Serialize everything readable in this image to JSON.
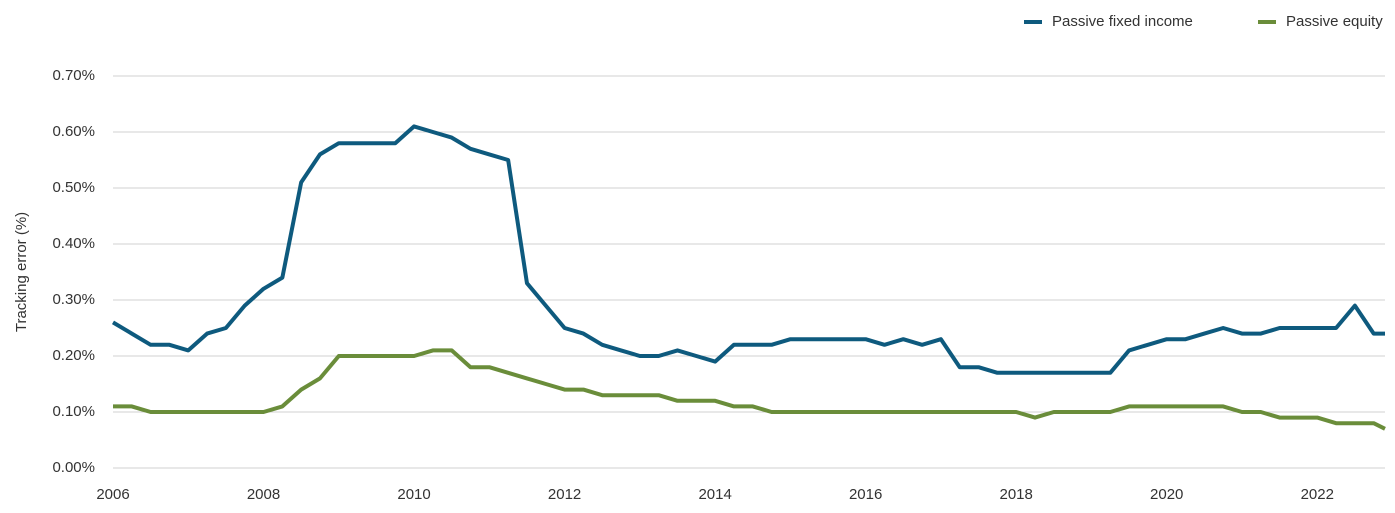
{
  "chart_data": {
    "type": "line",
    "y_label": "Tracking error (%)",
    "x": [
      2006,
      2006.25,
      2006.5,
      2006.75,
      2007,
      2007.25,
      2007.5,
      2007.75,
      2008,
      2008.25,
      2008.5,
      2008.75,
      2009,
      2009.25,
      2009.5,
      2009.75,
      2010,
      2010.25,
      2010.5,
      2010.75,
      2011,
      2011.25,
      2011.5,
      2011.75,
      2012,
      2012.25,
      2012.5,
      2012.75,
      2013,
      2013.25,
      2013.5,
      2013.75,
      2014,
      2014.25,
      2014.5,
      2014.75,
      2015,
      2015.25,
      2015.5,
      2015.75,
      2016,
      2016.25,
      2016.5,
      2016.75,
      2017,
      2017.25,
      2017.5,
      2017.75,
      2018,
      2018.25,
      2018.5,
      2018.75,
      2019,
      2019.25,
      2019.5,
      2019.75,
      2020,
      2020.25,
      2020.5,
      2020.75,
      2021,
      2021.25,
      2021.5,
      2021.75,
      2022,
      2022.25,
      2022.5,
      2022.75,
      2022.9
    ],
    "series": [
      {
        "name": "Passive fixed income",
        "color": "#0e5a7e",
        "values": [
          0.26,
          0.24,
          0.22,
          0.22,
          0.21,
          0.24,
          0.25,
          0.29,
          0.32,
          0.34,
          0.51,
          0.56,
          0.58,
          0.58,
          0.58,
          0.58,
          0.61,
          0.6,
          0.59,
          0.57,
          0.56,
          0.55,
          0.33,
          0.29,
          0.25,
          0.24,
          0.22,
          0.21,
          0.2,
          0.2,
          0.21,
          0.2,
          0.19,
          0.22,
          0.22,
          0.22,
          0.23,
          0.23,
          0.23,
          0.23,
          0.23,
          0.22,
          0.23,
          0.22,
          0.23,
          0.18,
          0.18,
          0.17,
          0.17,
          0.17,
          0.17,
          0.17,
          0.17,
          0.17,
          0.21,
          0.22,
          0.23,
          0.23,
          0.24,
          0.25,
          0.24,
          0.24,
          0.25,
          0.25,
          0.25,
          0.25,
          0.29,
          0.24,
          0.24
        ]
      },
      {
        "name": "Passive equity",
        "color": "#6a8d3a",
        "values": [
          0.11,
          0.11,
          0.1,
          0.1,
          0.1,
          0.1,
          0.1,
          0.1,
          0.1,
          0.11,
          0.14,
          0.16,
          0.2,
          0.2,
          0.2,
          0.2,
          0.2,
          0.21,
          0.21,
          0.18,
          0.18,
          0.17,
          0.16,
          0.15,
          0.14,
          0.14,
          0.13,
          0.13,
          0.13,
          0.13,
          0.12,
          0.12,
          0.12,
          0.11,
          0.11,
          0.1,
          0.1,
          0.1,
          0.1,
          0.1,
          0.1,
          0.1,
          0.1,
          0.1,
          0.1,
          0.1,
          0.1,
          0.1,
          0.1,
          0.09,
          0.1,
          0.1,
          0.1,
          0.1,
          0.11,
          0.11,
          0.11,
          0.11,
          0.11,
          0.11,
          0.1,
          0.1,
          0.09,
          0.09,
          0.09,
          0.08,
          0.08,
          0.08,
          0.07
        ]
      }
    ],
    "xlim": [
      2006,
      2022.9
    ],
    "xticks": [
      2006,
      2008,
      2010,
      2012,
      2014,
      2016,
      2018,
      2020,
      2022
    ],
    "ylim": [
      0,
      0.7
    ],
    "yticks": [
      {
        "value": 0,
        "label": "0.00%"
      },
      {
        "value": 0.1,
        "label": "0.10%"
      },
      {
        "value": 0.2,
        "label": "0.20%"
      },
      {
        "value": 0.3,
        "label": "0.30%"
      },
      {
        "value": 0.4,
        "label": "0.40%"
      },
      {
        "value": 0.5,
        "label": "0.50%"
      },
      {
        "value": 0.6,
        "label": "0.60%"
      },
      {
        "value": 0.7,
        "label": "0.70%"
      }
    ],
    "grid": true,
    "legend": "top-right"
  }
}
